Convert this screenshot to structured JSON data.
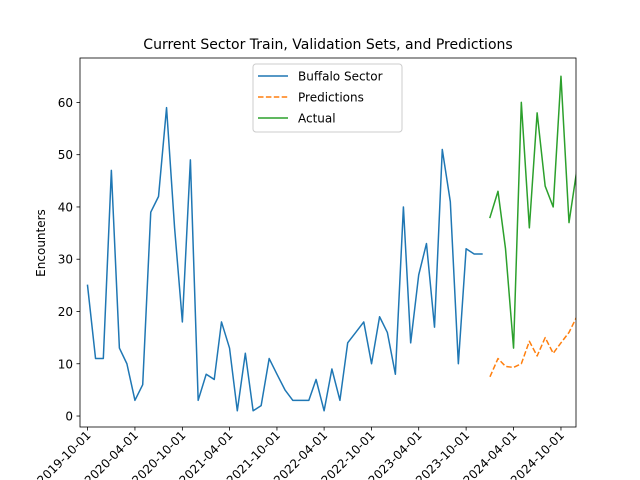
{
  "chart_data": {
    "type": "line",
    "title": "Current Sector Train, Validation Sets, and Predictions",
    "xlabel": "",
    "ylabel": "Encounters",
    "x_range": [
      "2019-09-02",
      "2024-11-28"
    ],
    "ylim": [
      -2.1,
      68.5
    ],
    "y_ticks": [
      0,
      10,
      20,
      30,
      40,
      50,
      60
    ],
    "x_ticks": [
      {
        "date": "2019-10-01",
        "label": "2019-10-01"
      },
      {
        "date": "2020-04-01",
        "label": "2020-04-01"
      },
      {
        "date": "2020-10-01",
        "label": "2020-10-01"
      },
      {
        "date": "2021-04-01",
        "label": "2021-04-01"
      },
      {
        "date": "2021-10-01",
        "label": "2021-10-01"
      },
      {
        "date": "2022-04-01",
        "label": "2022-04-01"
      },
      {
        "date": "2022-10-01",
        "label": "2022-10-01"
      },
      {
        "date": "2023-04-01",
        "label": "2023-04-01"
      },
      {
        "date": "2023-10-01",
        "label": "2023-10-01"
      },
      {
        "date": "2024-04-01",
        "label": "2024-04-01"
      },
      {
        "date": "2024-10-01",
        "label": "2024-10-01"
      }
    ],
    "grid": false,
    "legend_position": "upper-center",
    "series": [
      {
        "name": "Buffalo Sector",
        "color": "#1f77b4",
        "dash": "solid",
        "start": "2019-10-01",
        "values": [
          25,
          11,
          11,
          47,
          13,
          10,
          3,
          6,
          39,
          42,
          59,
          36,
          18,
          49,
          3,
          8,
          7,
          18,
          13,
          1,
          12,
          1,
          2,
          11,
          8,
          5,
          3,
          3,
          3,
          7,
          1,
          9,
          3,
          14,
          16,
          18,
          10,
          19,
          16,
          8,
          40,
          14,
          27,
          33,
          17,
          51,
          41,
          10,
          32,
          31,
          31
        ]
      },
      {
        "name": "Predictions",
        "color": "#ff7f0e",
        "dash": "dashed",
        "start": "2024-01-01",
        "values": [
          7.5,
          11,
          9.5,
          9.3,
          10,
          14.3,
          11.5,
          15,
          12,
          14,
          16,
          19
        ]
      },
      {
        "name": "Actual",
        "color": "#2ca02c",
        "dash": "solid",
        "start": "2024-01-01",
        "values": [
          38,
          43,
          32,
          13,
          60,
          36,
          58,
          44,
          40,
          65,
          37,
          47
        ]
      }
    ]
  }
}
